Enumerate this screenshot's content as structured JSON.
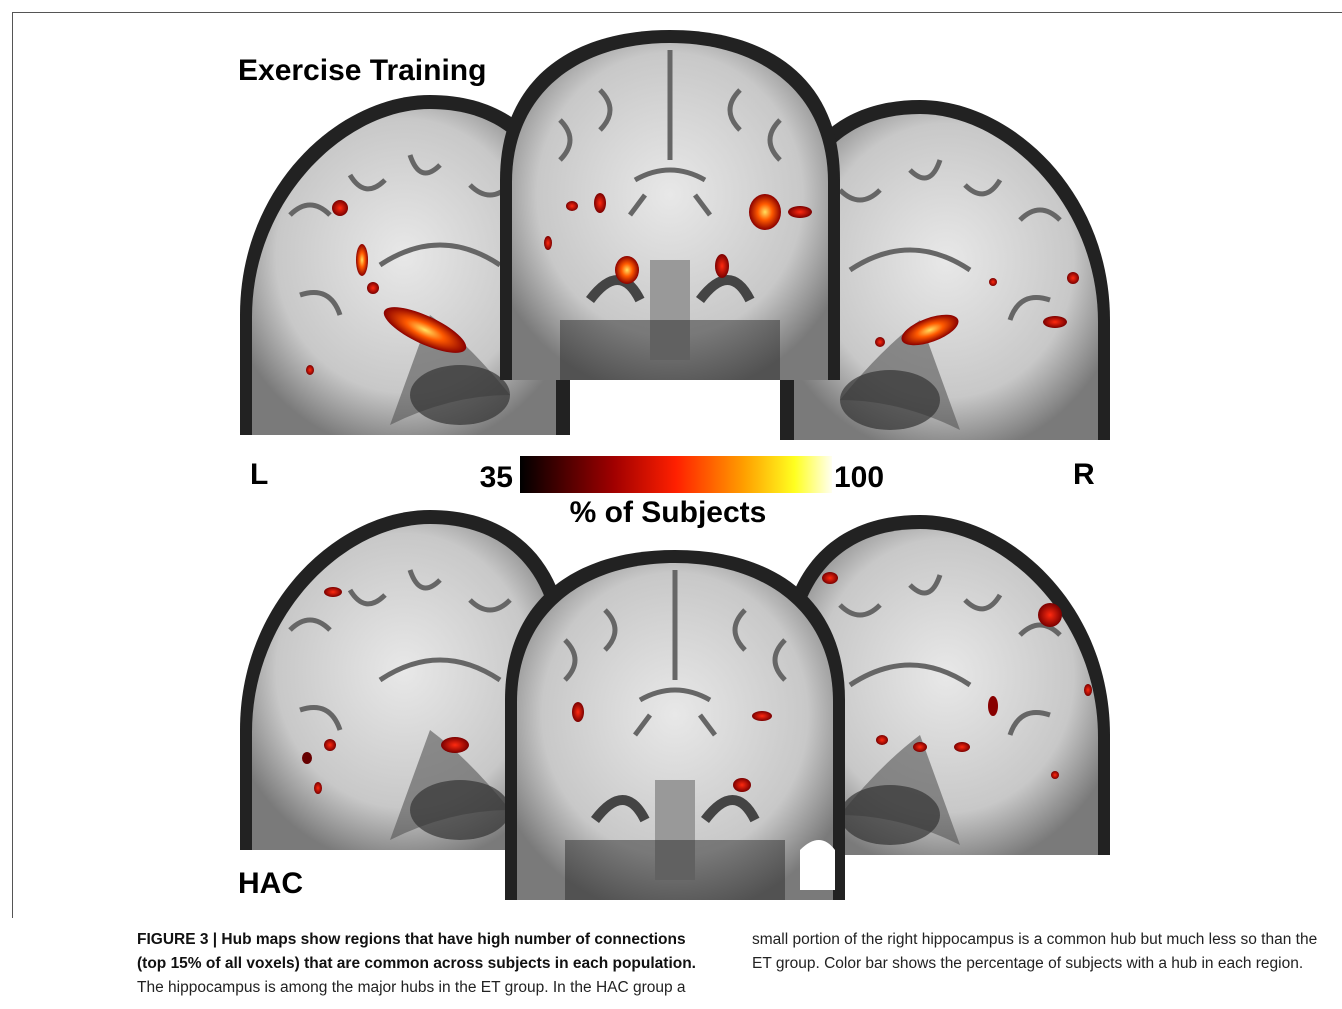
{
  "figure": {
    "panel_top_label": "Exercise Training",
    "panel_bottom_label": "HAC",
    "left_label": "L",
    "right_label": "R",
    "colorbar": {
      "min": 35,
      "max": 100,
      "label": "% of Subjects"
    },
    "caption": {
      "label": "FIGURE 3 | Hub maps show regions that have high number of connections (top 15% of all voxels) that are common across subjects in each population.",
      "text": "The hippocampus is among the major hubs in the ET group. In the HAC group a small portion of the right hippocampus is a common hub but much less so than the ET group. Color bar shows the percentage of subjects with a hub in each region."
    }
  }
}
